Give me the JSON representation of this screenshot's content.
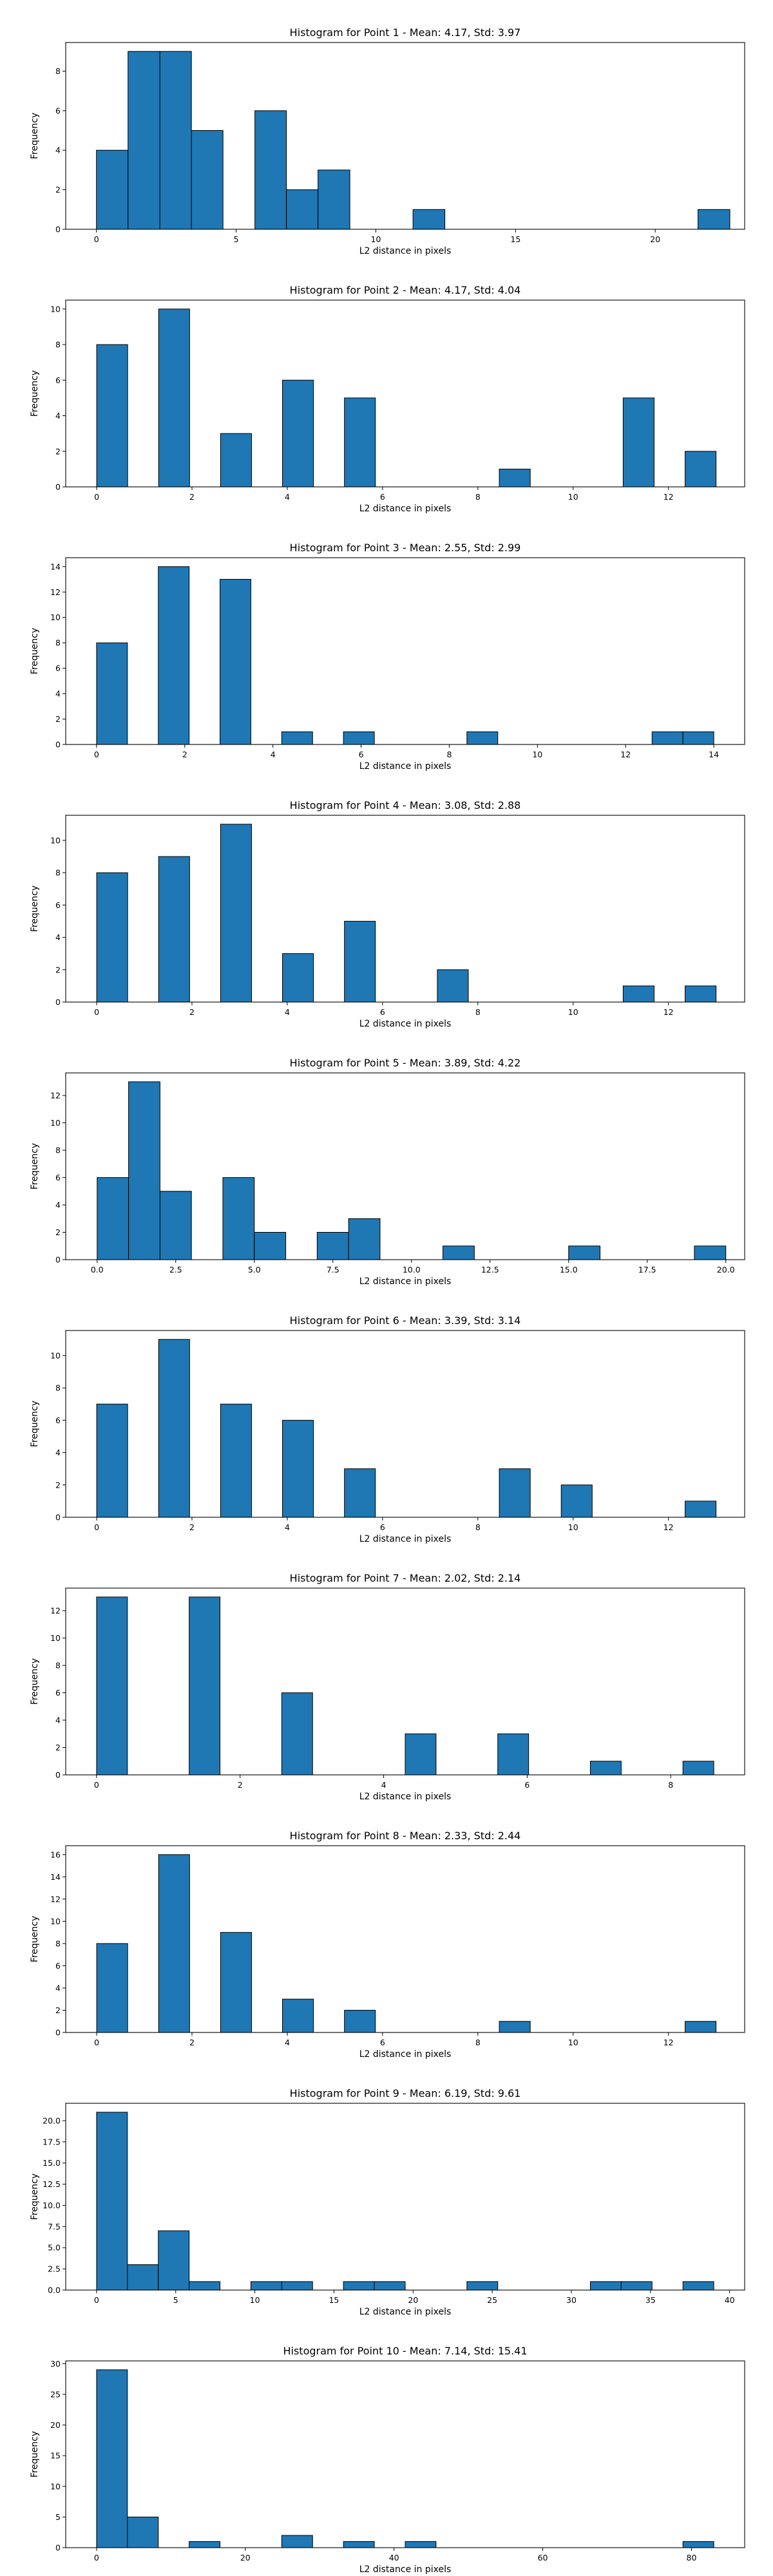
{
  "chart_data": [
    {
      "type": "bar",
      "title": "Histogram for Point 1 - Mean: 4.17, Std: 3.97",
      "xlabel": "L2 distance in pixels",
      "ylabel": "Frequency",
      "xlim": [
        -1.1,
        23.2
      ],
      "ylim": [
        0,
        9.45
      ],
      "xticks": [
        0,
        5,
        10,
        15,
        20
      ],
      "xtick_labels": [
        "0",
        "5",
        "10",
        "15",
        "20"
      ],
      "yticks": [
        0,
        2,
        4,
        6,
        8
      ],
      "ytick_labels": [
        "0",
        "2",
        "4",
        "6",
        "8"
      ],
      "bin_edges": [
        0,
        1.13,
        2.27,
        3.4,
        4.53,
        5.67,
        6.8,
        7.93,
        9.07,
        10.2,
        11.33,
        12.47,
        13.6,
        14.73,
        15.87,
        17.0,
        18.13,
        19.27,
        20.4,
        21.53,
        22.67
      ],
      "counts": [
        4,
        9,
        9,
        5,
        0,
        6,
        2,
        3,
        0,
        0,
        1,
        0,
        0,
        0,
        0,
        0,
        0,
        0,
        0,
        1
      ],
      "color": "#1f77b4",
      "grid": false
    },
    {
      "type": "bar",
      "title": "Histogram for Point 2 - Mean: 4.17, Std: 4.04",
      "xlabel": "L2 distance in pixels",
      "ylabel": "Frequency",
      "xlim": [
        -0.65,
        13.6
      ],
      "ylim": [
        0,
        10.5
      ],
      "xticks": [
        0,
        2,
        4,
        6,
        8,
        10,
        12
      ],
      "xtick_labels": [
        "0",
        "2",
        "4",
        "6",
        "8",
        "10",
        "12"
      ],
      "yticks": [
        0,
        2,
        4,
        6,
        8,
        10
      ],
      "ytick_labels": [
        "0",
        "2",
        "4",
        "6",
        "8",
        "10"
      ],
      "bin_edges": [
        0,
        0.65,
        1.3,
        1.95,
        2.6,
        3.25,
        3.9,
        4.55,
        5.2,
        5.85,
        6.5,
        7.15,
        7.8,
        8.45,
        9.1,
        9.75,
        10.4,
        11.05,
        11.7,
        12.35,
        13.0
      ],
      "counts": [
        8,
        0,
        10,
        0,
        3,
        0,
        6,
        0,
        5,
        0,
        0,
        0,
        0,
        1,
        0,
        0,
        0,
        5,
        0,
        2
      ],
      "color": "#1f77b4",
      "grid": false
    },
    {
      "type": "bar",
      "title": "Histogram for Point 3 - Mean: 2.55, Std: 2.99",
      "xlabel": "L2 distance in pixels",
      "ylabel": "Frequency",
      "xlim": [
        -0.7,
        14.7
      ],
      "ylim": [
        0,
        14.7
      ],
      "xticks": [
        0,
        2,
        4,
        6,
        8,
        10,
        12,
        14
      ],
      "xtick_labels": [
        "0",
        "2",
        "4",
        "6",
        "8",
        "10",
        "12",
        "14"
      ],
      "yticks": [
        0,
        2,
        4,
        6,
        8,
        10,
        12,
        14
      ],
      "ytick_labels": [
        "0",
        "2",
        "4",
        "6",
        "8",
        "10",
        "12",
        "14"
      ],
      "bin_edges": [
        0,
        0.7,
        1.4,
        2.1,
        2.8,
        3.5,
        4.2,
        4.9,
        5.6,
        6.3,
        7.0,
        7.7,
        8.4,
        9.1,
        9.8,
        10.5,
        11.2,
        11.9,
        12.6,
        13.3,
        14.0
      ],
      "counts": [
        8,
        0,
        14,
        0,
        13,
        0,
        1,
        0,
        1,
        0,
        0,
        0,
        1,
        0,
        0,
        0,
        0,
        0,
        1,
        1
      ],
      "color": "#1f77b4",
      "grid": false
    },
    {
      "type": "bar",
      "title": "Histogram for Point 4 - Mean: 3.08, Std: 2.88",
      "xlabel": "L2 distance in pixels",
      "ylabel": "Frequency",
      "xlim": [
        -0.65,
        13.6
      ],
      "ylim": [
        0,
        11.55
      ],
      "xticks": [
        0,
        2,
        4,
        6,
        8,
        10,
        12
      ],
      "xtick_labels": [
        "0",
        "2",
        "4",
        "6",
        "8",
        "10",
        "12"
      ],
      "yticks": [
        0,
        2,
        4,
        6,
        8,
        10
      ],
      "ytick_labels": [
        "0",
        "2",
        "4",
        "6",
        "8",
        "10"
      ],
      "bin_edges": [
        0,
        0.65,
        1.3,
        1.95,
        2.6,
        3.25,
        3.9,
        4.55,
        5.2,
        5.85,
        6.5,
        7.15,
        7.8,
        8.45,
        9.1,
        9.75,
        10.4,
        11.05,
        11.7,
        12.35,
        13.0
      ],
      "counts": [
        8,
        0,
        9,
        0,
        11,
        0,
        3,
        0,
        5,
        0,
        0,
        2,
        0,
        0,
        0,
        0,
        0,
        1,
        0,
        1
      ],
      "color": "#1f77b4",
      "grid": false
    },
    {
      "type": "bar",
      "title": "Histogram for Point 5 - Mean: 3.89, Std: 4.22",
      "xlabel": "L2 distance in pixels",
      "ylabel": "Frequency",
      "xlim": [
        -1.0,
        20.6
      ],
      "ylim": [
        0,
        13.65
      ],
      "xticks": [
        0,
        2.5,
        5,
        7.5,
        10,
        12.5,
        15,
        17.5,
        20
      ],
      "xtick_labels": [
        "0.0",
        "2.5",
        "5.0",
        "7.5",
        "10.0",
        "12.5",
        "15.0",
        "17.5",
        "20.0"
      ],
      "yticks": [
        0,
        2,
        4,
        6,
        8,
        10,
        12
      ],
      "ytick_labels": [
        "0",
        "2",
        "4",
        "6",
        "8",
        "10",
        "12"
      ],
      "bin_edges": [
        0,
        1.0,
        2.0,
        3.0,
        4.0,
        5.0,
        6.0,
        7.0,
        8.0,
        9.0,
        10.0,
        11.0,
        12.0,
        13.0,
        14.0,
        15.0,
        16.0,
        17.0,
        18.0,
        19.0,
        20.0
      ],
      "counts": [
        6,
        13,
        5,
        0,
        6,
        2,
        0,
        2,
        3,
        0,
        0,
        1,
        0,
        0,
        0,
        1,
        0,
        0,
        0,
        1
      ],
      "color": "#1f77b4",
      "grid": false
    },
    {
      "type": "bar",
      "title": "Histogram for Point 6 - Mean: 3.39, Std: 3.14",
      "xlabel": "L2 distance in pixels",
      "ylabel": "Frequency",
      "xlim": [
        -0.65,
        13.6
      ],
      "ylim": [
        0,
        11.55
      ],
      "xticks": [
        0,
        2,
        4,
        6,
        8,
        10,
        12
      ],
      "xtick_labels": [
        "0",
        "2",
        "4",
        "6",
        "8",
        "10",
        "12"
      ],
      "yticks": [
        0,
        2,
        4,
        6,
        8,
        10
      ],
      "ytick_labels": [
        "0",
        "2",
        "4",
        "6",
        "8",
        "10"
      ],
      "bin_edges": [
        0,
        0.65,
        1.3,
        1.95,
        2.6,
        3.25,
        3.9,
        4.55,
        5.2,
        5.85,
        6.5,
        7.15,
        7.8,
        8.45,
        9.1,
        9.75,
        10.4,
        11.05,
        11.7,
        12.35,
        13.0
      ],
      "counts": [
        7,
        0,
        11,
        0,
        7,
        0,
        6,
        0,
        3,
        0,
        0,
        0,
        0,
        3,
        0,
        2,
        0,
        0,
        0,
        1
      ],
      "color": "#1f77b4",
      "grid": false
    },
    {
      "type": "bar",
      "title": "Histogram for Point 7 - Mean: 2.02, Std: 2.14",
      "xlabel": "L2 distance in pixels",
      "ylabel": "Frequency",
      "xlim": [
        -0.43,
        9.03
      ],
      "ylim": [
        0,
        13.65
      ],
      "xticks": [
        0,
        2,
        4,
        6,
        8
      ],
      "xtick_labels": [
        "0",
        "2",
        "4",
        "6",
        "8"
      ],
      "yticks": [
        0,
        2,
        4,
        6,
        8,
        10,
        12
      ],
      "ytick_labels": [
        "0",
        "2",
        "4",
        "6",
        "8",
        "10",
        "12"
      ],
      "bin_edges": [
        0,
        0.43,
        0.86,
        1.29,
        1.72,
        2.15,
        2.58,
        3.01,
        3.44,
        3.87,
        4.3,
        4.73,
        5.16,
        5.59,
        6.02,
        6.45,
        6.88,
        7.31,
        7.74,
        8.17,
        8.6
      ],
      "counts": [
        13,
        0,
        0,
        13,
        0,
        0,
        6,
        0,
        0,
        0,
        3,
        0,
        0,
        3,
        0,
        0,
        1,
        0,
        0,
        1
      ],
      "color": "#1f77b4",
      "grid": false
    },
    {
      "type": "bar",
      "title": "Histogram for Point 8 - Mean: 2.33, Std: 2.44",
      "xlabel": "L2 distance in pixels",
      "ylabel": "Frequency",
      "xlim": [
        -0.65,
        13.6
      ],
      "ylim": [
        0,
        16.8
      ],
      "xticks": [
        0,
        2,
        4,
        6,
        8,
        10,
        12
      ],
      "xtick_labels": [
        "0",
        "2",
        "4",
        "6",
        "8",
        "10",
        "12"
      ],
      "yticks": [
        0,
        2,
        4,
        6,
        8,
        10,
        12,
        14,
        16
      ],
      "ytick_labels": [
        "0",
        "2",
        "4",
        "6",
        "8",
        "10",
        "12",
        "14",
        "16"
      ],
      "bin_edges": [
        0,
        0.65,
        1.3,
        1.95,
        2.6,
        3.25,
        3.9,
        4.55,
        5.2,
        5.85,
        6.5,
        7.15,
        7.8,
        8.45,
        9.1,
        9.75,
        10.4,
        11.05,
        11.7,
        12.35,
        13.0
      ],
      "counts": [
        8,
        0,
        16,
        0,
        9,
        0,
        3,
        0,
        2,
        0,
        0,
        0,
        0,
        1,
        0,
        0,
        0,
        0,
        0,
        1
      ],
      "color": "#1f77b4",
      "grid": false
    },
    {
      "type": "bar",
      "title": "Histogram for Point 9 - Mean: 6.19, Std: 9.61",
      "xlabel": "L2 distance in pixels",
      "ylabel": "Frequency",
      "xlim": [
        -1.95,
        40.95
      ],
      "ylim": [
        0,
        22.05
      ],
      "xticks": [
        0,
        5,
        10,
        15,
        20,
        25,
        30,
        35,
        40
      ],
      "xtick_labels": [
        "0",
        "5",
        "10",
        "15",
        "20",
        "25",
        "30",
        "35",
        "40"
      ],
      "yticks": [
        0,
        2.5,
        5,
        7.5,
        10,
        12.5,
        15,
        17.5,
        20
      ],
      "ytick_labels": [
        "0.0",
        "2.5",
        "5.0",
        "7.5",
        "10.0",
        "12.5",
        "15.0",
        "17.5",
        "20.0"
      ],
      "bin_edges": [
        0,
        1.95,
        3.9,
        5.85,
        7.8,
        9.75,
        11.7,
        13.65,
        15.6,
        17.55,
        19.5,
        21.45,
        23.4,
        25.35,
        27.3,
        29.25,
        31.2,
        33.15,
        35.1,
        37.05,
        39.0
      ],
      "counts": [
        21,
        3,
        7,
        1,
        0,
        1,
        1,
        0,
        1,
        1,
        0,
        0,
        1,
        0,
        0,
        0,
        1,
        1,
        0,
        1
      ],
      "color": "#1f77b4",
      "grid": false
    },
    {
      "type": "bar",
      "title": "Histogram for Point 10 - Mean: 7.14, Std: 15.41",
      "xlabel": "L2 distance in pixels",
      "ylabel": "Frequency",
      "xlim": [
        -4.15,
        87.15
      ],
      "ylim": [
        0,
        30.45
      ],
      "xticks": [
        0,
        20,
        40,
        60,
        80
      ],
      "xtick_labels": [
        "0",
        "20",
        "40",
        "60",
        "80"
      ],
      "yticks": [
        0,
        5,
        10,
        15,
        20,
        25,
        30
      ],
      "ytick_labels": [
        "0",
        "5",
        "10",
        "15",
        "20",
        "25",
        "30"
      ],
      "bin_edges": [
        0,
        4.15,
        8.3,
        12.45,
        16.6,
        20.75,
        24.9,
        29.05,
        33.2,
        37.35,
        41.5,
        45.65,
        49.8,
        53.95,
        58.1,
        62.25,
        66.4,
        70.55,
        74.7,
        78.85,
        83.0
      ],
      "counts": [
        29,
        5,
        0,
        1,
        0,
        0,
        2,
        0,
        1,
        0,
        1,
        0,
        0,
        0,
        0,
        0,
        0,
        0,
        0,
        1
      ],
      "color": "#1f77b4",
      "grid": false
    }
  ]
}
